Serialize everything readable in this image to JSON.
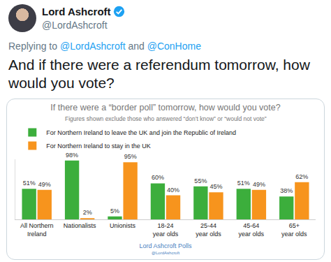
{
  "tweet": {
    "name": "Lord Ashcroft",
    "handle": "@LordAshcroft",
    "reply": {
      "prefix": "Replying to",
      "mentions": [
        "@LordAshcroft",
        "@ConHome"
      ],
      "joiner": "and"
    },
    "text": "And if there were a referendum tomorrow, how would you vote?"
  },
  "chart_data": {
    "type": "bar",
    "title": "If there were a “border poll” tomorrow, how would you vote?",
    "subtitle": "Figures shown exclude those who answered “don’t know” or “would not vote”",
    "categories": [
      "All Northern\nIreland",
      "Nationalists",
      "Unionists",
      "18-24\nyear olds",
      "25-44\nyear olds",
      "45-64\nyear olds",
      "65+\nyear olds"
    ],
    "series": [
      {
        "name": "For Northern Ireland to leave the UK and join the Republic of Ireland",
        "color": "#3cae3c",
        "values": [
          51,
          98,
          5,
          60,
          55,
          51,
          38
        ],
        "value_labels": [
          "51%",
          "98%",
          "5%",
          "60%",
          "55%",
          "51%",
          "38%"
        ]
      },
      {
        "name": "For Northern Ireland to stay in the UK",
        "color": "#f7941d",
        "values": [
          49,
          2,
          95,
          40,
          45,
          49,
          62
        ],
        "value_labels": [
          "49%",
          "2%",
          "95%",
          "40%",
          "45%",
          "49%",
          "62%"
        ]
      }
    ],
    "ylim": [
      0,
      100
    ],
    "data_labels": true,
    "tick_labels": "x",
    "legend": "top left",
    "annotations": [
      "Lord Ashcroft Polls",
      "@LordAshcroft"
    ]
  }
}
